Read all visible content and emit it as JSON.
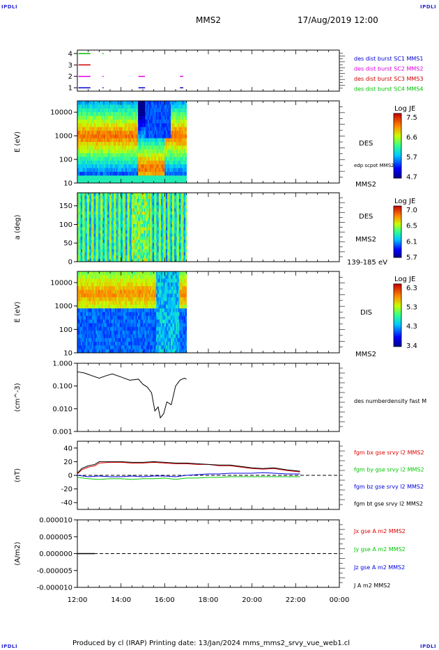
{
  "corner_labels": {
    "tl": "IPDLI",
    "tr": "IPDLI",
    "bl": "IPDLI",
    "br": "IPDLI"
  },
  "header": {
    "spacecraft": "MMS2",
    "datetime": "17/Aug/2019 12:00"
  },
  "footer": {
    "text": "Produced by cl (IRAP)    Printing date: 13/Jan/2024    mms_mms2_srvy_vue_web1.cl"
  },
  "colors": {
    "red": "#e00000",
    "green": "#00c800",
    "blue": "#0000e0",
    "magenta": "#e000e0",
    "black": "#000000"
  },
  "chart_data": [
    {
      "type": "scatter",
      "name": "availability",
      "yticks": [
        "1",
        "2",
        "3",
        "4"
      ],
      "legend": [
        {
          "text": "des dist burst SC1 MMS1",
          "color": "#0000d0"
        },
        {
          "text": "des dist burst SC2 MMS2",
          "color": "#e000e0"
        },
        {
          "text": "des dist burst SC3 MMS3",
          "color": "#d00000"
        },
        {
          "text": "des dist burst SC4 MMS4",
          "color": "#00c000"
        }
      ],
      "segments": [
        {
          "y": 4,
          "from": 0.05,
          "to": 0.6,
          "color": "#00c000"
        },
        {
          "y": 4,
          "from": 1.15,
          "to": 1.2,
          "color": "#00c000"
        },
        {
          "y": 3,
          "from": 0.05,
          "to": 0.6,
          "color": "#d00000"
        },
        {
          "y": 2,
          "from": 0.05,
          "to": 0.6,
          "color": "#e000e0"
        },
        {
          "y": 2,
          "from": 1.15,
          "to": 1.2,
          "color": "#e000e0"
        },
        {
          "y": 2,
          "from": 2.8,
          "to": 3.1,
          "color": "#e000e0"
        },
        {
          "y": 2,
          "from": 4.7,
          "to": 4.85,
          "color": "#e000e0"
        },
        {
          "y": 1,
          "from": 0.05,
          "to": 0.6,
          "color": "#0000d0"
        },
        {
          "y": 1,
          "from": 1.15,
          "to": 1.2,
          "color": "#0000d0"
        },
        {
          "y": 1,
          "from": 2.8,
          "to": 3.1,
          "color": "#0000d0"
        },
        {
          "y": 1,
          "from": 4.7,
          "to": 4.85,
          "color": "#0000d0"
        }
      ]
    },
    {
      "type": "heatmap",
      "name": "des-energy",
      "ylabel": "E (eV)",
      "yticks": [
        "10",
        "100",
        "1000",
        "10000"
      ],
      "right_labels": [
        "DES",
        "edp scpot MMS2",
        "MMS2"
      ],
      "colorbar": {
        "title": "Log JE",
        "ticks": [
          "7.5",
          "6.6",
          "5.7",
          "4.7"
        ]
      },
      "data_end_hour": 5.0
    },
    {
      "type": "heatmap",
      "name": "des-pitch",
      "ylabel": "a (deg)",
      "yticks": [
        "0",
        "50",
        "100",
        "150"
      ],
      "right_labels": [
        "DES",
        "MMS2",
        "139-185 eV"
      ],
      "colorbar": {
        "title": "Log JE",
        "ticks": [
          "7.0",
          "6.5",
          "6.1",
          "5.7"
        ]
      },
      "data_end_hour": 5.0
    },
    {
      "type": "heatmap",
      "name": "dis-energy",
      "ylabel": "E (eV)",
      "yticks": [
        "10",
        "100",
        "1000",
        "10000"
      ],
      "right_labels": [
        "DIS",
        "MMS2"
      ],
      "colorbar": {
        "title": "Log JE",
        "ticks": [
          "6.3",
          "5.3",
          "4.3",
          "3.4"
        ]
      },
      "data_end_hour": 5.0
    },
    {
      "type": "line",
      "name": "density",
      "ylabel": "(cm^-3)",
      "yticks": [
        "0.001",
        "0.010",
        "0.100",
        "1.000"
      ],
      "legend": [
        {
          "text": "des numberdensity fast M",
          "color": "#000000"
        }
      ],
      "series": [
        {
          "x": [
            0,
            0.3,
            0.6,
            1.0,
            1.3,
            1.6,
            2.0,
            2.4,
            2.8,
            3.0,
            3.2,
            3.4,
            3.55,
            3.7,
            3.8,
            3.95,
            4.1,
            4.3,
            4.5,
            4.7,
            4.9,
            5.0
          ],
          "y": [
            0.42,
            0.38,
            0.3,
            0.22,
            0.28,
            0.34,
            0.25,
            0.18,
            0.2,
            0.12,
            0.09,
            0.05,
            0.008,
            0.012,
            0.004,
            0.006,
            0.02,
            0.015,
            0.1,
            0.18,
            0.22,
            0.2
          ]
        }
      ]
    },
    {
      "type": "line",
      "name": "magnetic-field",
      "ylabel": "(nT)",
      "yticks": [
        "-40",
        "-20",
        "0",
        "20",
        "40"
      ],
      "ylim": [
        -50,
        50
      ],
      "legend": [
        {
          "text": "fgm bx gse srvy l2 MMS2",
          "color": "#e00000"
        },
        {
          "text": "fgm by gse srvy l2 MMS2",
          "color": "#00c800"
        },
        {
          "text": "fgm bz gse srvy l2 MMS2",
          "color": "#0000e0"
        },
        {
          "text": "fgm bt gse srvy l2 MMS2",
          "color": "#000000"
        }
      ],
      "series": [
        {
          "name": "bx",
          "x": [
            0,
            0.2,
            0.5,
            0.8,
            1.0,
            1.5,
            2.0,
            2.5,
            3.0,
            3.5,
            4.0,
            4.5,
            5.0,
            5.5,
            6.0,
            6.5,
            7.0,
            7.5,
            8.0,
            8.5,
            9.0,
            9.6,
            10.2
          ],
          "y": [
            2,
            8,
            12,
            14,
            18,
            19,
            19,
            18,
            18,
            19,
            18,
            17,
            17,
            16,
            16,
            14,
            14,
            12,
            10,
            9,
            10,
            7,
            5
          ]
        },
        {
          "name": "by",
          "x": [
            0,
            0.5,
            1.0,
            1.5,
            2.0,
            2.5,
            3.0,
            3.5,
            4.0,
            4.5,
            5.0,
            5.5,
            6.0,
            6.5,
            7.0,
            7.5,
            8.0,
            8.5,
            9.0,
            9.6,
            10.2
          ],
          "y": [
            -3,
            -5,
            -6,
            -5,
            -5,
            -6,
            -5,
            -5,
            -4,
            -6,
            -4,
            -4,
            -3,
            -3,
            -2,
            -2,
            -2,
            -2,
            -2,
            -2,
            -2
          ]
        },
        {
          "name": "bz",
          "x": [
            0,
            0.5,
            1.0,
            1.5,
            2.0,
            2.5,
            3.0,
            3.5,
            4.0,
            4.5,
            5.0,
            5.5,
            6.0,
            6.5,
            7.0,
            7.5,
            8.0,
            8.5,
            9.0,
            9.6,
            10.2
          ],
          "y": [
            0,
            -2,
            -1,
            -2,
            -2,
            -1,
            -2,
            -1,
            -1,
            -2,
            0,
            1,
            2,
            2,
            3,
            3,
            3,
            4,
            3,
            2,
            2
          ]
        },
        {
          "name": "bt",
          "x": [
            0,
            0.2,
            0.5,
            0.8,
            1.0,
            1.5,
            2.0,
            2.5,
            3.0,
            3.5,
            4.0,
            4.5,
            5.0,
            5.5,
            6.0,
            6.5,
            7.0,
            7.5,
            8.0,
            8.5,
            9.0,
            9.6,
            10.2
          ],
          "y": [
            3,
            10,
            14,
            16,
            20,
            20,
            20,
            19,
            19,
            20,
            19,
            18,
            18,
            17,
            16,
            15,
            15,
            13,
            11,
            10,
            11,
            8,
            6
          ]
        }
      ]
    },
    {
      "type": "line",
      "name": "current-density",
      "ylabel": "(A/m2)",
      "yticks": [
        "-0.000010",
        "-0.000005",
        "0.000000",
        "0.000005",
        "0.000010"
      ],
      "ylim": [
        -1e-05,
        1e-05
      ],
      "legend": [
        {
          "text": "Jx gse A m2 MMS2",
          "color": "#e00000"
        },
        {
          "text": "Jy gse A m2 MMS2",
          "color": "#00c800"
        },
        {
          "text": "Jz gse A m2 MMS2",
          "color": "#0000e0"
        },
        {
          "text": "J A m2 MMS2",
          "color": "#000000"
        }
      ],
      "series": [
        {
          "name": "J",
          "x": [
            0,
            0.8
          ],
          "y": [
            0,
            0
          ]
        }
      ]
    }
  ],
  "xaxis": {
    "ticks": [
      "12:00",
      "14:00",
      "16:00",
      "18:00",
      "20:00",
      "22:00",
      "00:00"
    ],
    "hours": [
      0,
      2,
      4,
      6,
      8,
      10,
      12
    ]
  }
}
